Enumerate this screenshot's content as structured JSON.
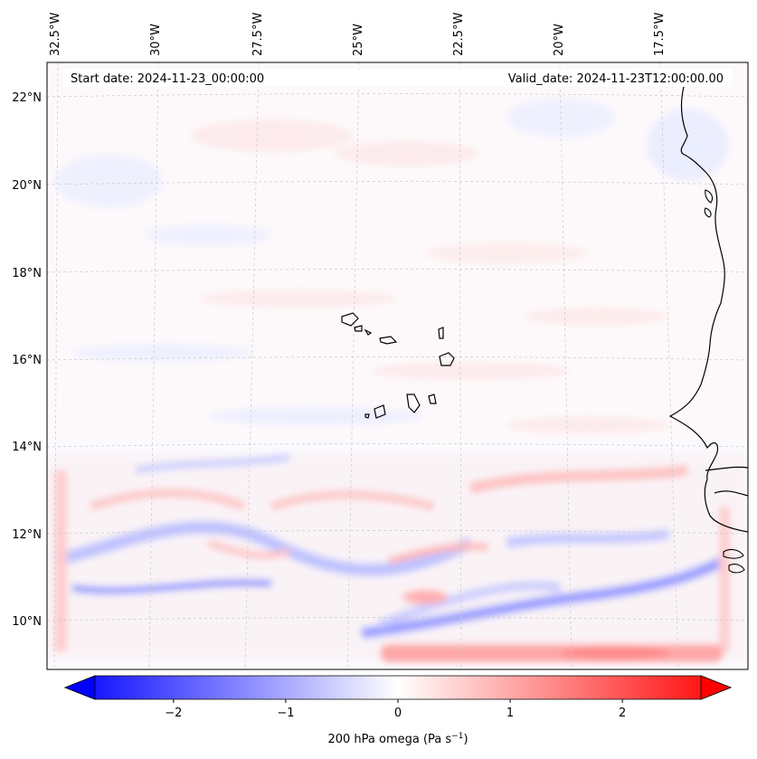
{
  "map": {
    "start_date_label": "Start date: 2024-11-23_00:00:00",
    "valid_date_label": "Valid_date: 2024-11-23T12:00:00.00",
    "longitude_labels": [
      "32.5°W",
      "30°W",
      "27.5°W",
      "25°W",
      "22.5°W",
      "20°W",
      "17.5°W"
    ],
    "latitude_labels": [
      "22°N",
      "20°N",
      "18°N",
      "16°N",
      "14°N",
      "12°N",
      "10°N"
    ],
    "land_features": [
      "west-africa-coastline",
      "cape-verde-islands"
    ],
    "colorbar": {
      "label_prefix": "200 hPa omega (Pa s",
      "label_exponent": "−1",
      "label_suffix": ")",
      "ticks": [
        "−2",
        "−1",
        "0",
        "1",
        "2"
      ],
      "tick_values": [
        -2,
        -1,
        0,
        1,
        2
      ],
      "min": -2.7,
      "max": 2.7,
      "negative_color": "#0000ff",
      "zero_color": "#ffffff",
      "positive_color": "#ff0000"
    }
  }
}
